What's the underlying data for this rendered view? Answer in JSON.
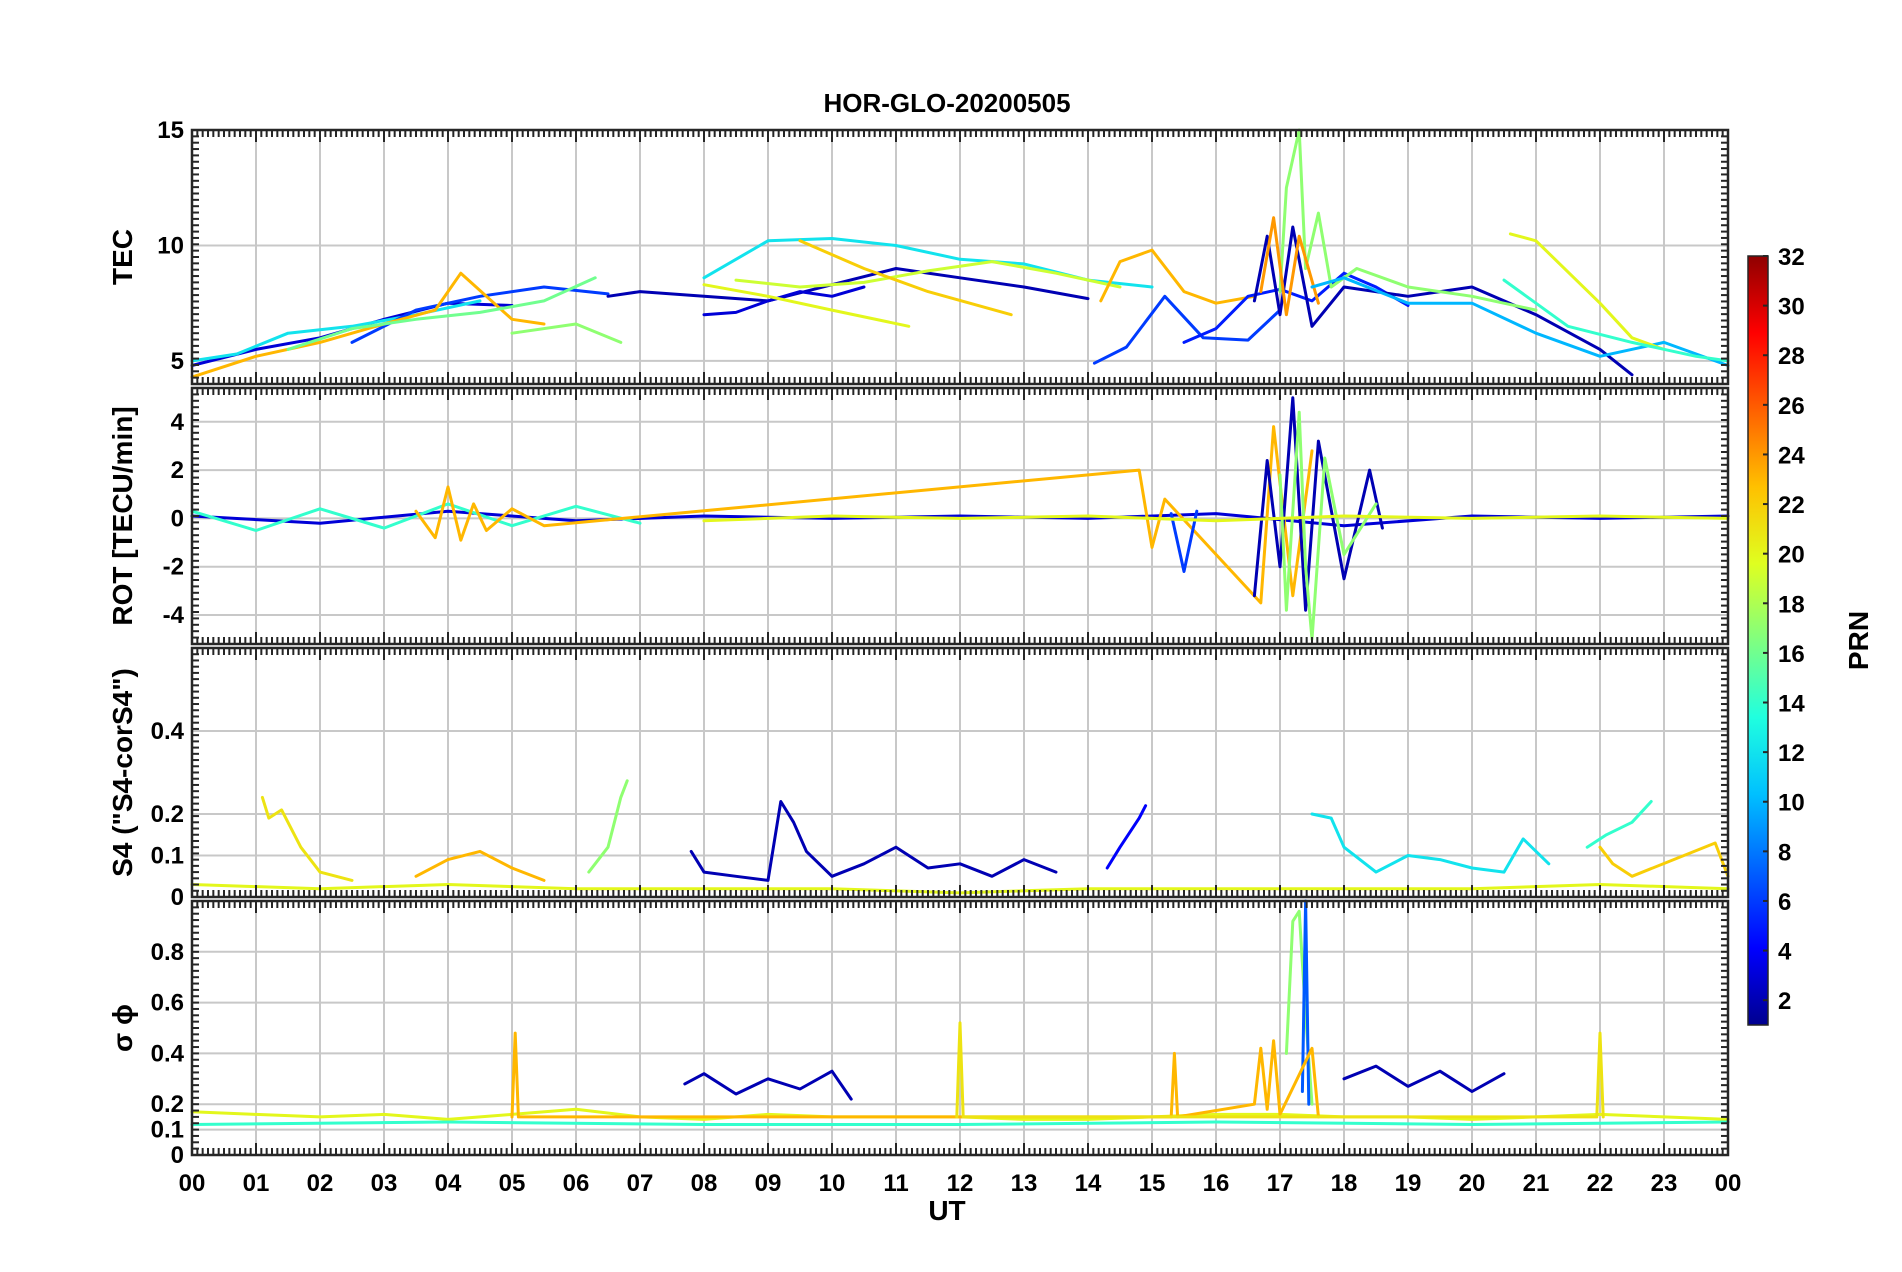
{
  "figure": {
    "title": "HOR-GLO-20200505",
    "xlabel": "UT"
  },
  "colors": {
    "colormap": [
      "#00008f",
      "#0000ff",
      "#0060ff",
      "#00c0ff",
      "#20ffdf",
      "#80ff80",
      "#dfff20",
      "#ffc000",
      "#ff6000",
      "#ff0000",
      "#8f0000"
    ],
    "grid": "#c8c8c8",
    "frame": "#262626"
  },
  "colorbar": {
    "label": "PRN",
    "range": [
      1,
      32
    ],
    "ticks": [
      2,
      4,
      6,
      8,
      10,
      12,
      14,
      16,
      18,
      20,
      22,
      24,
      26,
      28,
      30,
      32
    ]
  },
  "chart_data": [
    {
      "type": "line",
      "panel": "TEC",
      "title": "HOR-GLO-20200505",
      "ylabel": "TEC",
      "ylim": [
        4,
        15
      ],
      "yticks": [
        5,
        10,
        15
      ],
      "xlim": [
        0,
        24
      ],
      "xticklabels": [
        "00",
        "01",
        "02",
        "03",
        "04",
        "05",
        "06",
        "07",
        "08",
        "09",
        "10",
        "11",
        "12",
        "13",
        "14",
        "15",
        "16",
        "17",
        "18",
        "19",
        "20",
        "21",
        "22",
        "23",
        "00"
      ],
      "grid": true,
      "series": [
        {
          "prn": 3,
          "x": [
            0,
            1,
            2,
            3,
            4,
            5
          ],
          "y": [
            4.8,
            5.5,
            6.0,
            6.8,
            7.5,
            7.4
          ]
        },
        {
          "prn": 12,
          "x": [
            0,
            0.7,
            1.5,
            2.5,
            3.5,
            4.5
          ],
          "y": [
            5.0,
            5.3,
            6.2,
            6.5,
            7.0,
            7.6
          ]
        },
        {
          "prn": 6,
          "x": [
            2.5,
            3.5,
            4.5,
            5.5,
            6.5
          ],
          "y": [
            5.8,
            7.2,
            7.8,
            8.2,
            7.9
          ]
        },
        {
          "prn": 23,
          "x": [
            0,
            1,
            2,
            3,
            3.8,
            4.2,
            5,
            5.5
          ],
          "y": [
            4.3,
            5.2,
            5.8,
            6.6,
            7.2,
            8.8,
            6.8,
            6.6
          ]
        },
        {
          "prn": 16,
          "x": [
            1.5,
            2.5,
            3.5,
            4.5,
            5.5,
            6.3
          ],
          "y": [
            5.5,
            6.4,
            6.8,
            7.1,
            7.6,
            8.6
          ]
        },
        {
          "prn": 17,
          "x": [
            5,
            6,
            6.7
          ],
          "y": [
            6.2,
            6.6,
            5.8
          ]
        },
        {
          "prn": 2,
          "x": [
            6.5,
            7,
            8,
            9,
            10,
            11,
            12,
            13,
            14
          ],
          "y": [
            7.8,
            8.0,
            7.8,
            7.6,
            8.3,
            9.0,
            8.6,
            8.2,
            7.7
          ]
        },
        {
          "prn": 3,
          "x": [
            8,
            8.5,
            9,
            9.5,
            10,
            10.5
          ],
          "y": [
            7.0,
            7.1,
            7.6,
            8.0,
            7.8,
            8.2
          ]
        },
        {
          "prn": 12,
          "x": [
            8,
            9,
            10,
            11,
            12,
            13,
            14,
            15
          ],
          "y": [
            8.6,
            10.2,
            10.3,
            10.0,
            9.4,
            9.2,
            8.5,
            8.2
          ]
        },
        {
          "prn": 20,
          "x": [
            8,
            9,
            10,
            11.2
          ],
          "y": [
            8.3,
            7.8,
            7.2,
            6.5
          ]
        },
        {
          "prn": 19,
          "x": [
            8.5,
            9.5,
            10.5,
            11.5,
            12.5,
            13.5,
            14.5
          ],
          "y": [
            8.5,
            8.2,
            8.4,
            8.9,
            9.3,
            8.8,
            8.2
          ]
        },
        {
          "prn": 22,
          "x": [
            9.5,
            10.5,
            11.5,
            12.8
          ],
          "y": [
            10.2,
            9.0,
            8.0,
            7.0
          ]
        },
        {
          "prn": 23,
          "x": [
            14.2,
            14.5,
            15,
            15.5,
            16,
            16.6
          ],
          "y": [
            7.6,
            9.3,
            9.8,
            8.0,
            7.5,
            7.8
          ]
        },
        {
          "prn": 6,
          "x": [
            14.1,
            14.6,
            15.2,
            15.8,
            16.5,
            17
          ],
          "y": [
            4.9,
            5.6,
            7.8,
            6.0,
            5.9,
            7.2
          ]
        },
        {
          "prn": 5,
          "x": [
            15.5,
            16,
            16.5,
            17,
            17.5,
            18,
            18.5,
            19
          ],
          "y": [
            5.8,
            6.4,
            7.8,
            8.1,
            7.6,
            8.8,
            8.2,
            7.4
          ]
        },
        {
          "prn": 2,
          "x": [
            16.6,
            16.8,
            17.0,
            17.2,
            17.5,
            18,
            19,
            20,
            21,
            22,
            22.5
          ],
          "y": [
            7.6,
            10.4,
            7.0,
            10.8,
            6.5,
            8.2,
            7.8,
            8.2,
            7.0,
            5.5,
            4.4
          ]
        },
        {
          "prn": 17,
          "x": [
            17.0,
            17.1,
            17.3,
            17.4,
            17.6,
            17.8,
            18.2,
            19,
            20,
            21
          ],
          "y": [
            8.0,
            12.5,
            15.0,
            9.0,
            11.4,
            8.2,
            9.0,
            8.2,
            7.8,
            7.2
          ]
        },
        {
          "prn": 24,
          "x": [
            16.7,
            16.9,
            17.1,
            17.3,
            17.6
          ],
          "y": [
            8.0,
            11.2,
            7.0,
            10.4,
            7.5
          ]
        },
        {
          "prn": 10,
          "x": [
            17.5,
            18,
            19,
            20,
            21,
            22,
            23,
            24
          ],
          "y": [
            8.2,
            8.6,
            7.5,
            7.5,
            6.2,
            5.2,
            5.8,
            4.8
          ]
        },
        {
          "prn": 20,
          "x": [
            20.6,
            21,
            22,
            22.5,
            23
          ],
          "y": [
            10.5,
            10.2,
            7.5,
            6.0,
            5.5
          ]
        },
        {
          "prn": 14,
          "x": [
            20.5,
            21.5,
            22.5,
            23.5,
            24
          ],
          "y": [
            8.5,
            6.5,
            5.8,
            5.2,
            5.0
          ]
        }
      ]
    },
    {
      "type": "line",
      "panel": "ROT",
      "ylabel": "ROT [TECU/min]",
      "ylim": [
        -5.2,
        5.4
      ],
      "yticks": [
        -4,
        -2,
        0,
        2,
        4
      ],
      "xlim": [
        0,
        24
      ],
      "grid": true,
      "series": [
        {
          "prn": 3,
          "x": [
            0,
            2,
            4,
            6,
            8,
            10,
            12,
            14,
            16,
            18,
            20,
            22,
            24
          ],
          "y": [
            0.1,
            -0.2,
            0.3,
            -0.1,
            0.1,
            0.0,
            0.1,
            0.0,
            0.2,
            -0.3,
            0.1,
            0.0,
            0.1
          ]
        },
        {
          "prn": 14,
          "x": [
            0,
            1,
            2,
            3,
            4,
            5,
            6,
            7
          ],
          "y": [
            0.3,
            -0.5,
            0.4,
            -0.4,
            0.6,
            -0.3,
            0.5,
            -0.2
          ]
        },
        {
          "prn": 23,
          "x": [
            3.5,
            3.8,
            4.0,
            4.2,
            4.4,
            4.6,
            5.0,
            5.5,
            14.8,
            15.0,
            15.2,
            16.7,
            16.9,
            17.2,
            17.5
          ],
          "y": [
            0.3,
            -0.8,
            1.3,
            -0.9,
            0.6,
            -0.5,
            0.4,
            -0.3,
            2.0,
            -1.2,
            0.8,
            -3.5,
            3.8,
            -3.2,
            2.8
          ]
        },
        {
          "prn": 2,
          "x": [
            16.6,
            16.8,
            17.0,
            17.2,
            17.4,
            17.6,
            18.0,
            18.4,
            18.6
          ],
          "y": [
            -3.2,
            2.4,
            -2.0,
            5.0,
            -3.8,
            3.2,
            -2.5,
            2.0,
            -0.4
          ]
        },
        {
          "prn": 17,
          "x": [
            17.0,
            17.1,
            17.3,
            17.4,
            17.5,
            17.7,
            18.0,
            18.5
          ],
          "y": [
            1.8,
            -3.8,
            4.4,
            -2.0,
            -5.0,
            2.5,
            -1.5,
            0.6
          ]
        },
        {
          "prn": 6,
          "x": [
            15.3,
            15.5,
            15.7
          ],
          "y": [
            0.2,
            -2.2,
            0.3
          ]
        },
        {
          "prn": 20,
          "x": [
            8,
            10,
            12,
            14,
            16,
            18,
            20,
            22,
            24
          ],
          "y": [
            -0.1,
            0.1,
            0.0,
            0.1,
            -0.1,
            0.1,
            0.0,
            0.1,
            0.0
          ]
        }
      ]
    },
    {
      "type": "line",
      "panel": "S4",
      "ylabel": "S4 (\"S4-corS4\")",
      "ylim": [
        0,
        0.6
      ],
      "yticks": [
        0,
        0.1,
        0.2,
        0.4
      ],
      "xlim": [
        0,
        24
      ],
      "grid": true,
      "series": [
        {
          "prn": 21,
          "x": [
            1.1,
            1.2,
            1.4,
            1.7,
            2.0,
            2.5
          ],
          "y": [
            0.24,
            0.19,
            0.21,
            0.12,
            0.06,
            0.04
          ]
        },
        {
          "prn": 17,
          "x": [
            6.2,
            6.5,
            6.7,
            6.8
          ],
          "y": [
            0.06,
            0.12,
            0.24,
            0.28
          ]
        },
        {
          "prn": 2,
          "x": [
            7.8,
            8.0,
            8.5,
            9.0,
            9.2,
            9.4,
            9.6,
            10,
            10.5,
            11,
            11.5,
            12,
            12.5,
            13,
            13.5
          ],
          "y": [
            0.11,
            0.06,
            0.05,
            0.04,
            0.23,
            0.18,
            0.11,
            0.05,
            0.08,
            0.12,
            0.07,
            0.08,
            0.05,
            0.09,
            0.06
          ]
        },
        {
          "prn": 23,
          "x": [
            3.5,
            4.0,
            4.5,
            5.0,
            5.5
          ],
          "y": [
            0.05,
            0.09,
            0.11,
            0.07,
            0.04
          ]
        },
        {
          "prn": 4,
          "x": [
            14.3,
            14.5,
            14.8,
            14.9
          ],
          "y": [
            0.07,
            0.12,
            0.19,
            0.22
          ]
        },
        {
          "prn": 12,
          "x": [
            17.5,
            17.8,
            18,
            18.5,
            19,
            19.5,
            20,
            20.5,
            20.8,
            21.2
          ],
          "y": [
            0.2,
            0.19,
            0.12,
            0.06,
            0.1,
            0.09,
            0.07,
            0.06,
            0.14,
            0.08
          ]
        },
        {
          "prn": 14,
          "x": [
            21.8,
            22.1,
            22.5,
            22.8
          ],
          "y": [
            0.12,
            0.15,
            0.18,
            0.23
          ]
        },
        {
          "prn": 22,
          "x": [
            22,
            22.2,
            22.5,
            23.8,
            24
          ],
          "y": [
            0.12,
            0.08,
            0.05,
            0.13,
            0.05
          ]
        },
        {
          "prn": 20,
          "x": [
            0,
            2,
            4,
            6,
            8,
            10,
            12,
            14,
            16,
            18,
            20,
            22,
            24
          ],
          "y": [
            0.03,
            0.02,
            0.03,
            0.02,
            0.02,
            0.02,
            0.01,
            0.02,
            0.02,
            0.02,
            0.02,
            0.03,
            0.02
          ]
        }
      ]
    },
    {
      "type": "line",
      "panel": "sigma-phi",
      "ylabel": "σ ϕ",
      "ylim": [
        0,
        1.0
      ],
      "yticks": [
        0,
        0.1,
        0.2,
        0.4,
        0.6,
        0.8
      ],
      "xlim": [
        0,
        24
      ],
      "grid": true,
      "xlabel": "UT",
      "series": [
        {
          "prn": 20,
          "x": [
            0,
            1,
            2,
            3,
            4,
            5,
            6,
            7,
            8,
            9,
            10,
            11,
            12,
            13,
            14,
            15,
            16,
            17,
            18,
            19,
            20,
            21,
            22,
            23,
            24
          ],
          "y": [
            0.17,
            0.16,
            0.15,
            0.16,
            0.14,
            0.16,
            0.18,
            0.15,
            0.14,
            0.16,
            0.15,
            0.15,
            0.15,
            0.14,
            0.14,
            0.15,
            0.16,
            0.16,
            0.15,
            0.15,
            0.14,
            0.15,
            0.16,
            0.15,
            0.14
          ]
        },
        {
          "prn": 2,
          "x": [
            7.7,
            8.0,
            8.5,
            9.0,
            9.5,
            10.0,
            10.3
          ],
          "y": [
            0.28,
            0.32,
            0.24,
            0.3,
            0.26,
            0.33,
            0.22
          ]
        },
        {
          "prn": 2,
          "x": [
            18.0,
            18.5,
            19.0,
            19.5,
            20.0,
            20.5
          ],
          "y": [
            0.3,
            0.35,
            0.27,
            0.33,
            0.25,
            0.32
          ]
        },
        {
          "prn": 17,
          "x": [
            17.1,
            17.2,
            17.3,
            17.4,
            17.5
          ],
          "y": [
            0.4,
            0.92,
            0.96,
            0.55,
            0.2
          ]
        },
        {
          "prn": 7,
          "x": [
            17.35,
            17.4,
            17.45
          ],
          "y": [
            0.25,
            1.0,
            0.2
          ]
        },
        {
          "prn": 23,
          "x": [
            5.0,
            5.05,
            5.1,
            15.3,
            15.35,
            15.4,
            16.6,
            16.7,
            16.8,
            16.9,
            17.0,
            17.5,
            17.6
          ],
          "y": [
            0.15,
            0.48,
            0.15,
            0.15,
            0.4,
            0.15,
            0.2,
            0.42,
            0.18,
            0.45,
            0.16,
            0.42,
            0.15
          ]
        },
        {
          "prn": 21,
          "x": [
            11.95,
            12.0,
            12.05,
            21.95,
            22.0,
            22.05
          ],
          "y": [
            0.15,
            0.52,
            0.15,
            0.15,
            0.48,
            0.15
          ]
        },
        {
          "prn": 14,
          "x": [
            0,
            4,
            8,
            12,
            16,
            20,
            24
          ],
          "y": [
            0.12,
            0.13,
            0.12,
            0.12,
            0.13,
            0.12,
            0.13
          ]
        }
      ]
    }
  ]
}
